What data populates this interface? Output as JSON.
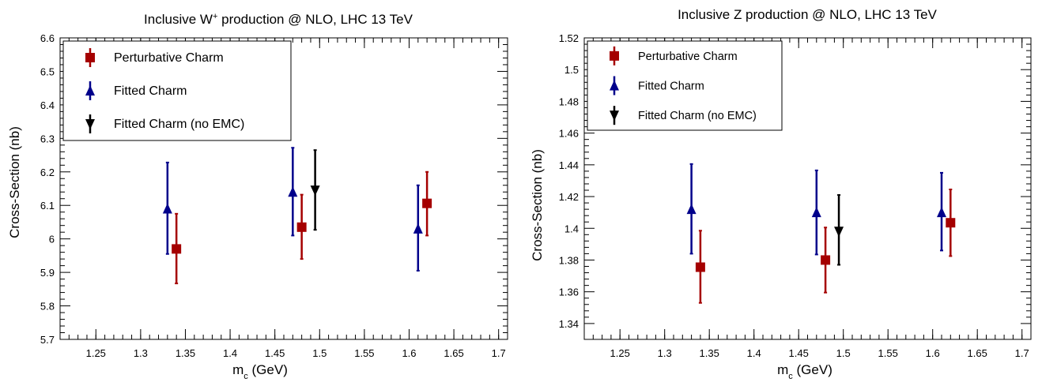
{
  "chart_data": [
    {
      "type": "scatter",
      "title_main": "Inclusive W",
      "title_sup": "+",
      "title_rest": " production @ NLO, LHC 13 TeV",
      "xlabel_main": "m",
      "xlabel_sub": "c",
      "xlabel_rest": " (GeV)",
      "ylabel": "Cross-Section (nb)",
      "xlim": [
        1.21,
        1.71
      ],
      "ylim": [
        5.7,
        6.6
      ],
      "xticks": [
        "1.25",
        "1.3",
        "1.35",
        "1.4",
        "1.45",
        "1.5",
        "1.55",
        "1.6",
        "1.65",
        "1.7"
      ],
      "yticks": [
        "5.7",
        "5.8",
        "5.9",
        "6",
        "6.1",
        "6.2",
        "6.3",
        "6.4",
        "6.5",
        "6.6"
      ],
      "legend_position": "top-left",
      "series": [
        {
          "name": "Perturbative Charm",
          "marker": "square",
          "color": "#a50000",
          "points": [
            {
              "x": 1.34,
              "y": 5.97,
              "lo": 5.867,
              "hi": 6.075
            },
            {
              "x": 1.48,
              "y": 6.035,
              "lo": 5.94,
              "hi": 6.132
            },
            {
              "x": 1.62,
              "y": 6.106,
              "lo": 6.01,
              "hi": 6.2
            }
          ]
        },
        {
          "name": "Fitted Charm",
          "marker": "triangle-up",
          "color": "#00008b",
          "points": [
            {
              "x": 1.33,
              "y": 6.09,
              "lo": 5.955,
              "hi": 6.228
            },
            {
              "x": 1.47,
              "y": 6.14,
              "lo": 6.01,
              "hi": 6.272
            },
            {
              "x": 1.61,
              "y": 6.03,
              "lo": 5.905,
              "hi": 6.16
            }
          ]
        },
        {
          "name": "Fitted Charm (no EMC)",
          "marker": "triangle-down",
          "color": "#000000",
          "points": [
            {
              "x": 1.495,
              "y": 6.145,
              "lo": 6.027,
              "hi": 6.265
            }
          ]
        }
      ]
    },
    {
      "type": "scatter",
      "title_main": "Inclusive Z production @ NLO, LHC 13 TeV",
      "title_sup": "",
      "title_rest": "",
      "xlabel_main": "m",
      "xlabel_sub": "c",
      "xlabel_rest": " (GeV)",
      "ylabel": "Cross-Section (nb)",
      "xlim": [
        1.21,
        1.71
      ],
      "ylim": [
        1.33,
        1.52
      ],
      "xticks": [
        "1.25",
        "1.3",
        "1.35",
        "1.4",
        "1.45",
        "1.5",
        "1.55",
        "1.6",
        "1.65",
        "1.7"
      ],
      "yticks": [
        "1.34",
        "1.36",
        "1.38",
        "1.4",
        "1.42",
        "1.44",
        "1.46",
        "1.48",
        "1.5",
        "1.52"
      ],
      "legend_position": "top-left",
      "series": [
        {
          "name": "Perturbative Charm",
          "marker": "square",
          "color": "#a50000",
          "points": [
            {
              "x": 1.34,
              "y": 1.3755,
              "lo": 1.353,
              "hi": 1.3985
            },
            {
              "x": 1.48,
              "y": 1.38,
              "lo": 1.3595,
              "hi": 1.4005
            },
            {
              "x": 1.62,
              "y": 1.4035,
              "lo": 1.3825,
              "hi": 1.4245
            }
          ]
        },
        {
          "name": "Fitted Charm",
          "marker": "triangle-up",
          "color": "#00008b",
          "points": [
            {
              "x": 1.33,
              "y": 1.412,
              "lo": 1.384,
              "hi": 1.4405
            },
            {
              "x": 1.47,
              "y": 1.41,
              "lo": 1.3835,
              "hi": 1.4365
            },
            {
              "x": 1.61,
              "y": 1.41,
              "lo": 1.386,
              "hi": 1.435
            }
          ]
        },
        {
          "name": "Fitted Charm (no EMC)",
          "marker": "triangle-down",
          "color": "#000000",
          "points": [
            {
              "x": 1.495,
              "y": 1.398,
              "lo": 1.377,
              "hi": 1.421
            }
          ]
        }
      ]
    }
  ]
}
